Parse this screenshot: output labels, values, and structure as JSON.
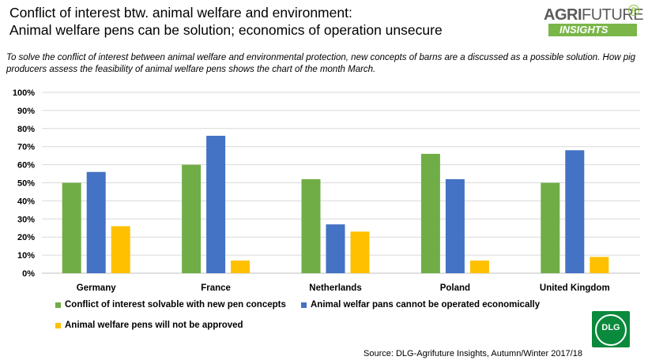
{
  "header": {
    "title_line1": "Conflict of interest btw. animal welfare and environment:",
    "title_line2": "Animal welfare pens can be solution; economics of operation unsecure",
    "subtitle": "To solve the conflict of interest between animal welfare and environmental protection, new concepts of barns are a discussed as a possible solution. How pig producers assess the feasibility of animal welfare pens shows the chart of the month March."
  },
  "logo": {
    "agri": "AGRI",
    "future": "FUTURE",
    "insights": "INSIGHTS",
    "reg": "R",
    "dlg": "DLG"
  },
  "source": "Source: DLG-Agrifuture Insights, Autumn/Winter 2017/18",
  "colors": {
    "green": "#70ad47",
    "blue": "#4472c4",
    "yellow": "#ffc000",
    "grid": "#d9d9d9"
  },
  "chart_data": {
    "type": "bar",
    "categories": [
      "Germany",
      "France",
      "Netherlands",
      "Poland",
      "United Kingdom"
    ],
    "series": [
      {
        "name": "Conflict of interest solvable with new pen concepts",
        "color": "#70ad47",
        "values": [
          50,
          60,
          52,
          66,
          50
        ]
      },
      {
        "name": "Animal welfar pans cannot be operated economically",
        "color": "#4472c4",
        "values": [
          56,
          76,
          27,
          52,
          68
        ]
      },
      {
        "name": "Animal welfare pens will not be approved",
        "color": "#ffc000",
        "values": [
          26,
          7,
          23,
          7,
          9
        ]
      }
    ],
    "yticks": [
      "0%",
      "10%",
      "20%",
      "30%",
      "40%",
      "50%",
      "60%",
      "70%",
      "80%",
      "90%",
      "100%"
    ],
    "ylim": [
      0,
      100
    ],
    "grid": true,
    "legend_position": "bottom-left"
  }
}
